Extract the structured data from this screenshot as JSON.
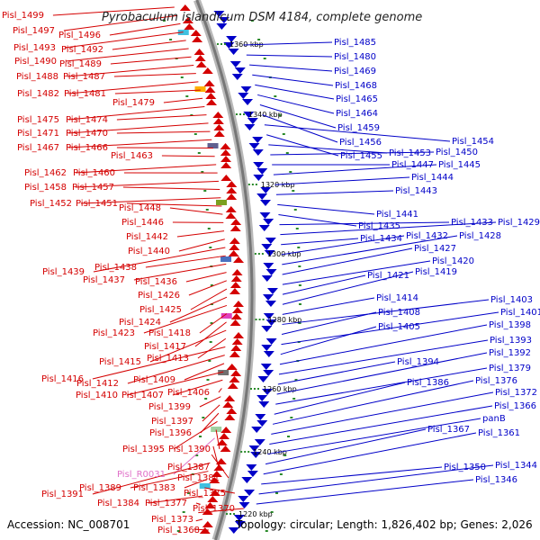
{
  "title": "Pyrobaculum islandicum DSM 4184, complete genome",
  "accession": "Accession: NC_008701",
  "topology": "Topology: circular; Length: 1,826,402 bp; Genes: 2,026",
  "colors": {
    "forward": "#d40000",
    "reverse": "#0000c8",
    "rna": "#e070c8",
    "backbone": "#888888"
  },
  "kbp_labels": [
    "1360 kbp",
    "1340 kbp",
    "1320 kbp",
    "1300 kbp",
    "1280 kbp",
    "1260 kbp",
    "1240 kbp",
    "1220 kbp"
  ],
  "left_labels": [
    "Pisl_1499",
    "Pisl_1497",
    "Pisl_1496",
    "Pisl_1493",
    "Pisl_1492",
    "Pisl_1490",
    "Pisl_1489",
    "Pisl_1488",
    "Pisl_1487",
    "Pisl_1482",
    "Pisl_1481",
    "Pisl_1479",
    "Pisl_1475",
    "Pisl_1474",
    "Pisl_1471",
    "Pisl_1470",
    "Pisl_1467",
    "Pisl_1466",
    "Pisl_1463",
    "Pisl_1462",
    "Pisl_1460",
    "Pisl_1458",
    "Pisl_1457",
    "Pisl_1452",
    "Pisl_1451",
    "Pisl_1448",
    "Pisl_1446",
    "Pisl_1442",
    "Pisl_1440",
    "Pisl_1439",
    "Pisl_1438",
    "Pisl_1437",
    "Pisl_1436",
    "Pisl_1426",
    "Pisl_1425",
    "Pisl_1424",
    "Pisl_1423",
    "Pisl_1418",
    "Pisl_1417",
    "Pisl_1415",
    "Pisl_1413",
    "Pisl_1416",
    "Pisl_1412",
    "Pisl_1409",
    "Pisl_1410",
    "Pisl_1407",
    "Pisl_1406",
    "Pisl_1399",
    "Pisl_1397",
    "Pisl_1396",
    "Pisl_1395",
    "Pisl_1390",
    "Pisl_R0031",
    "Pisl_1387",
    "Pisl_1381",
    "Pisl_1391",
    "Pisl_1389",
    "Pisl_1383",
    "Pisl_1375",
    "Pisl_1384",
    "Pisl_1377",
    "Pisl_1370",
    "Pisl_1373",
    "Pisl_1368"
  ],
  "right_labels": [
    "Pisl_1485",
    "Pisl_1480",
    "Pisl_1469",
    "Pisl_1468",
    "Pisl_1465",
    "Pisl_1464",
    "Pisl_1459",
    "Pisl_1456",
    "Pisl_1454",
    "Pisl_1455",
    "Pisl_1453",
    "Pisl_1450",
    "Pisl_1447",
    "Pisl_1445",
    "Pisl_1444",
    "Pisl_1443",
    "Pisl_1441",
    "Pisl_1435",
    "Pisl_1433",
    "Pisl_1429",
    "Pisl_1434",
    "Pisl_1432",
    "Pisl_1428",
    "Pisl_1427",
    "Pisl_1420",
    "Pisl_1421",
    "Pisl_1419",
    "Pisl_1414",
    "Pisl_1403",
    "Pisl_1408",
    "Pisl_1401",
    "Pisl_1405",
    "Pisl_1398",
    "Pisl_1393",
    "Pisl_1394",
    "Pisl_1392",
    "Pisl_1379",
    "Pisl_1386",
    "Pisl_1376",
    "Pisl_1372",
    "Pisl_1366",
    "panB",
    "Pisl_1367",
    "Pisl_1361",
    "Pisl_1350",
    "Pisl_1344",
    "Pisl_1346"
  ]
}
